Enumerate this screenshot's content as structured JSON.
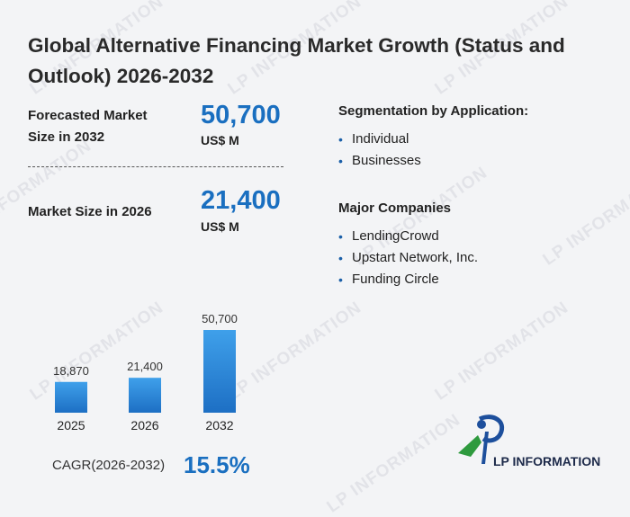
{
  "title": "Global Alternative Financing Market Growth (Status and Outlook) 2026-2032",
  "forecast": {
    "label_line1": "Forecasted Market",
    "label_line2": "Size in 2032",
    "value": "50,700",
    "unit": "US$ M"
  },
  "current": {
    "label": "Market Size in 2026",
    "value": "21,400",
    "unit": "US$ M"
  },
  "segmentation": {
    "title": "Segmentation by Application:",
    "items": [
      "Individual",
      "Businesses"
    ]
  },
  "companies": {
    "title": "Major Companies",
    "items": [
      "LendingCrowd",
      "Upstart Network, Inc.",
      "Funding Circle"
    ]
  },
  "cagr": {
    "label": "CAGR(2026-2032)",
    "value": "15.5%"
  },
  "watermark": "LP INFORMATION",
  "logo": {
    "text": "LP INFORMATION"
  },
  "colors": {
    "accent": "#1a6fc0",
    "bar_top": "#3fa0ea",
    "bar_bottom": "#1d6fc4",
    "logo_green": "#2e9a3e"
  },
  "chart_data": {
    "type": "bar",
    "categories": [
      "2025",
      "2026",
      "2032"
    ],
    "values": [
      18870,
      21400,
      50700
    ],
    "value_labels": [
      "18,870",
      "21,400",
      "50,700"
    ],
    "title": "",
    "xlabel": "",
    "ylabel": "",
    "grid": false
  }
}
